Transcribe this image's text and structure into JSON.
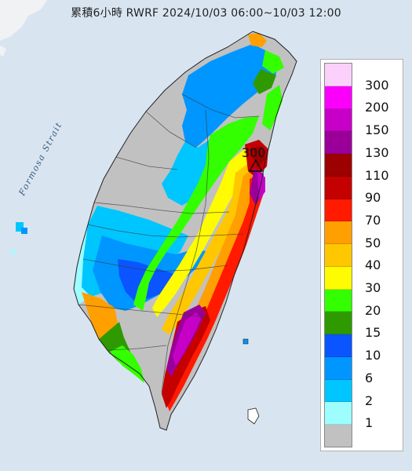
{
  "title": "累積6小時 RWRF 2024/10/03 06:00~10/03 12:00",
  "water_label": "Formosa Strait",
  "max_marker": {
    "value": "300",
    "symbol": "triangle"
  },
  "legend": {
    "levels": [
      "300",
      "200",
      "150",
      "130",
      "110",
      "90",
      "70",
      "50",
      "40",
      "30",
      "20",
      "15",
      "10",
      "6",
      "2",
      "1"
    ],
    "colors": [
      "#fbd0fb",
      "#fa00fa",
      "#c700c7",
      "#9a0099",
      "#9c0000",
      "#c40000",
      "#ff1a00",
      "#ff9f00",
      "#ffc700",
      "#fffb00",
      "#33ff00",
      "#2f9a00",
      "#0a55ff",
      "#0096ff",
      "#00c6ff",
      "#9efdff",
      "#c1c1c1"
    ]
  }
}
